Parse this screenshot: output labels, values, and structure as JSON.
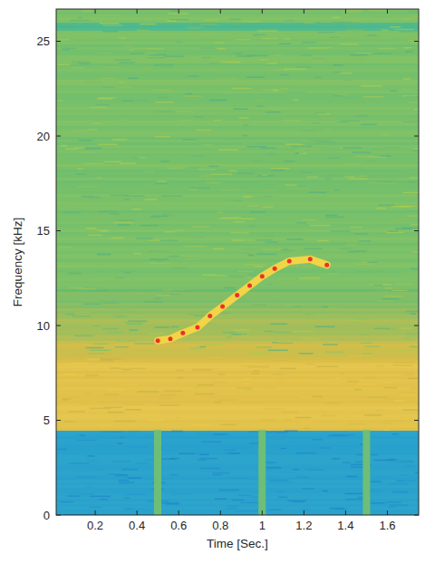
{
  "chart_data": {
    "type": "line",
    "x_label": "Time [Sec.]",
    "y_label": "Frequency [kHz]",
    "x": [
      0.5,
      0.56,
      0.62,
      0.69,
      0.75,
      0.81,
      0.88,
      0.94,
      1.0,
      1.06,
      1.13,
      1.23,
      1.31
    ],
    "series": [
      {
        "type": "line",
        "color": "#f3d446",
        "values": [
          9.2,
          9.3,
          9.6,
          9.9,
          10.5,
          11.0,
          11.6,
          12.1,
          12.6,
          13.0,
          13.4,
          13.5,
          13.2
        ]
      },
      {
        "type": "scatter",
        "marker": "dot",
        "color": "#e8322a",
        "values": [
          9.2,
          9.3,
          9.6,
          9.9,
          10.5,
          11.0,
          11.6,
          12.1,
          12.6,
          13.0,
          13.4,
          13.5,
          13.2
        ]
      }
    ],
    "xlim": [
      0.013,
      1.75
    ],
    "ylim": [
      0,
      26.7
    ],
    "xticks": [
      0.2,
      0.4,
      0.6,
      0.8,
      1,
      1.2,
      1.4,
      1.6
    ],
    "yticks": [
      0,
      5,
      10,
      15,
      20,
      25
    ],
    "grid": false
  }
}
